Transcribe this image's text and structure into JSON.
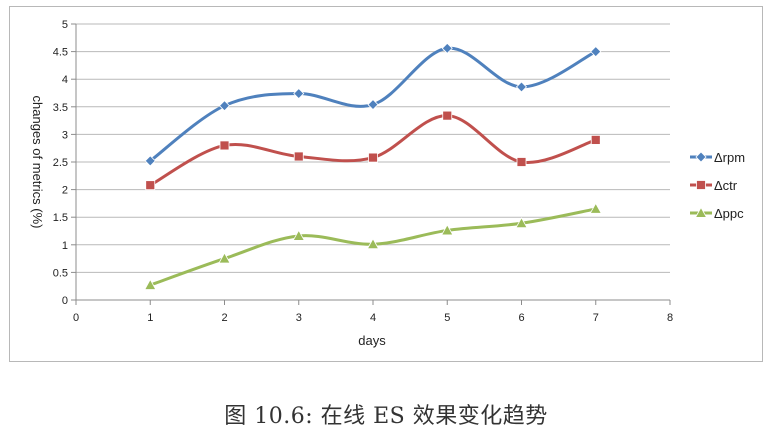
{
  "chart_data": {
    "type": "line",
    "smooth": true,
    "title": "",
    "xlabel": "days",
    "ylabel": "changes of metrics (%)",
    "xlim": [
      0,
      8
    ],
    "ylim": [
      0,
      5
    ],
    "x_ticks": [
      "0",
      "1",
      "2",
      "3",
      "4",
      "5",
      "6",
      "7",
      "8"
    ],
    "y_ticks": [
      "0",
      "0.5",
      "1",
      "1.5",
      "2",
      "2.5",
      "3",
      "3.5",
      "4",
      "4.5",
      "5"
    ],
    "grid": "horizontal",
    "legend_position": "right",
    "x": [
      1,
      2,
      3,
      4,
      5,
      6,
      7
    ],
    "series": [
      {
        "name": "Δrpm",
        "color": "#4f81bd",
        "marker": "diamond",
        "values": [
          2.52,
          3.52,
          3.74,
          3.54,
          4.56,
          3.86,
          4.5
        ]
      },
      {
        "name": "Δctr",
        "color": "#c0504d",
        "marker": "square",
        "values": [
          2.08,
          2.8,
          2.6,
          2.58,
          3.34,
          2.5,
          2.9
        ]
      },
      {
        "name": "Δppc",
        "color": "#9bbb59",
        "marker": "triangle",
        "values": [
          0.27,
          0.75,
          1.16,
          1.01,
          1.26,
          1.39,
          1.65
        ]
      }
    ]
  },
  "caption": "图 10.6: 在线 ES 效果变化趋势"
}
